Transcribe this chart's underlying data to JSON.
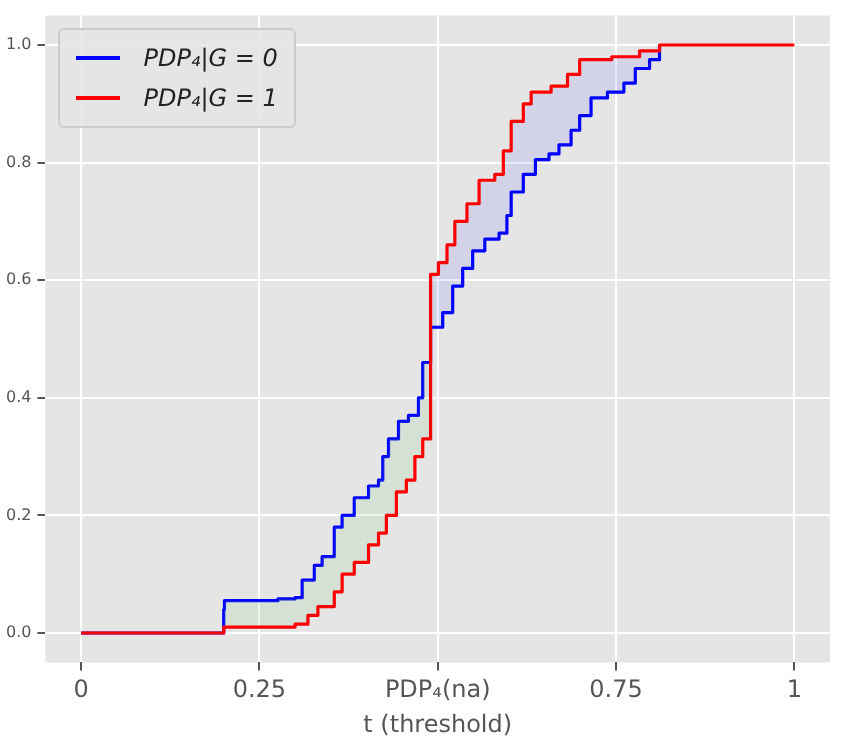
{
  "chart_data": {
    "type": "step",
    "xlabel": "t (threshold)",
    "xlim": [
      -0.05,
      1.05
    ],
    "ylim": [
      -0.05,
      1.05
    ],
    "xticks": [
      0,
      0.25,
      {
        "value": 0.5,
        "label": "PDP₄(na)"
      },
      0.75,
      1
    ],
    "yticks": [
      {
        "value": 0,
        "label": "0.0"
      },
      {
        "value": 0.2,
        "label": "0.2"
      },
      {
        "value": 0.4,
        "label": "0.4"
      },
      {
        "value": 0.6,
        "label": "0.6"
      },
      {
        "value": 0.8,
        "label": "0.8"
      },
      {
        "value": 1,
        "label": "1.0"
      }
    ],
    "grid": true,
    "legend": "top left",
    "line_style": "solid",
    "marker": "none",
    "series": [
      {
        "name": "PDP₄|G = 0",
        "color": "#0000ff",
        "x": [
          0,
          0.2,
          0.201,
          0.276,
          0.3,
          0.31,
          0.327,
          0.338,
          0.355,
          0.366,
          0.383,
          0.403,
          0.417,
          0.423,
          0.431,
          0.445,
          0.459,
          0.473,
          0.479,
          0.49,
          0.507,
          0.521,
          0.535,
          0.549,
          0.566,
          0.586,
          0.597,
          0.603,
          0.62,
          0.637,
          0.656,
          0.67,
          0.687,
          0.699,
          0.715,
          0.738,
          0.761,
          0.777,
          0.797,
          0.811
        ],
        "values": [
          0,
          0.04,
          0.055,
          0.058,
          0.06,
          0.09,
          0.115,
          0.13,
          0.18,
          0.2,
          0.23,
          0.25,
          0.26,
          0.3,
          0.33,
          0.36,
          0.37,
          0.4,
          0.46,
          0.52,
          0.545,
          0.59,
          0.62,
          0.65,
          0.67,
          0.68,
          0.71,
          0.75,
          0.78,
          0.805,
          0.815,
          0.83,
          0.855,
          0.88,
          0.91,
          0.92,
          0.935,
          0.96,
          0.975,
          1.0
        ]
      },
      {
        "name": "PDP₄|G = 1",
        "color": "#ff0000",
        "x": [
          0,
          0.2,
          0.3,
          0.318,
          0.332,
          0.355,
          0.366,
          0.383,
          0.403,
          0.417,
          0.428,
          0.442,
          0.456,
          0.468,
          0.479,
          0.49,
          0.501,
          0.513,
          0.524,
          0.541,
          0.558,
          0.58,
          0.592,
          0.603,
          0.62,
          0.631,
          0.659,
          0.682,
          0.699,
          0.744,
          0.783,
          0.811,
          1
        ],
        "values": [
          0,
          0.01,
          0.015,
          0.03,
          0.045,
          0.07,
          0.1,
          0.12,
          0.15,
          0.17,
          0.2,
          0.24,
          0.26,
          0.3,
          0.33,
          0.61,
          0.63,
          0.66,
          0.7,
          0.73,
          0.77,
          0.78,
          0.82,
          0.87,
          0.9,
          0.92,
          0.93,
          0.95,
          0.975,
          0.98,
          0.99,
          1.0,
          1.0
        ]
      }
    ]
  }
}
